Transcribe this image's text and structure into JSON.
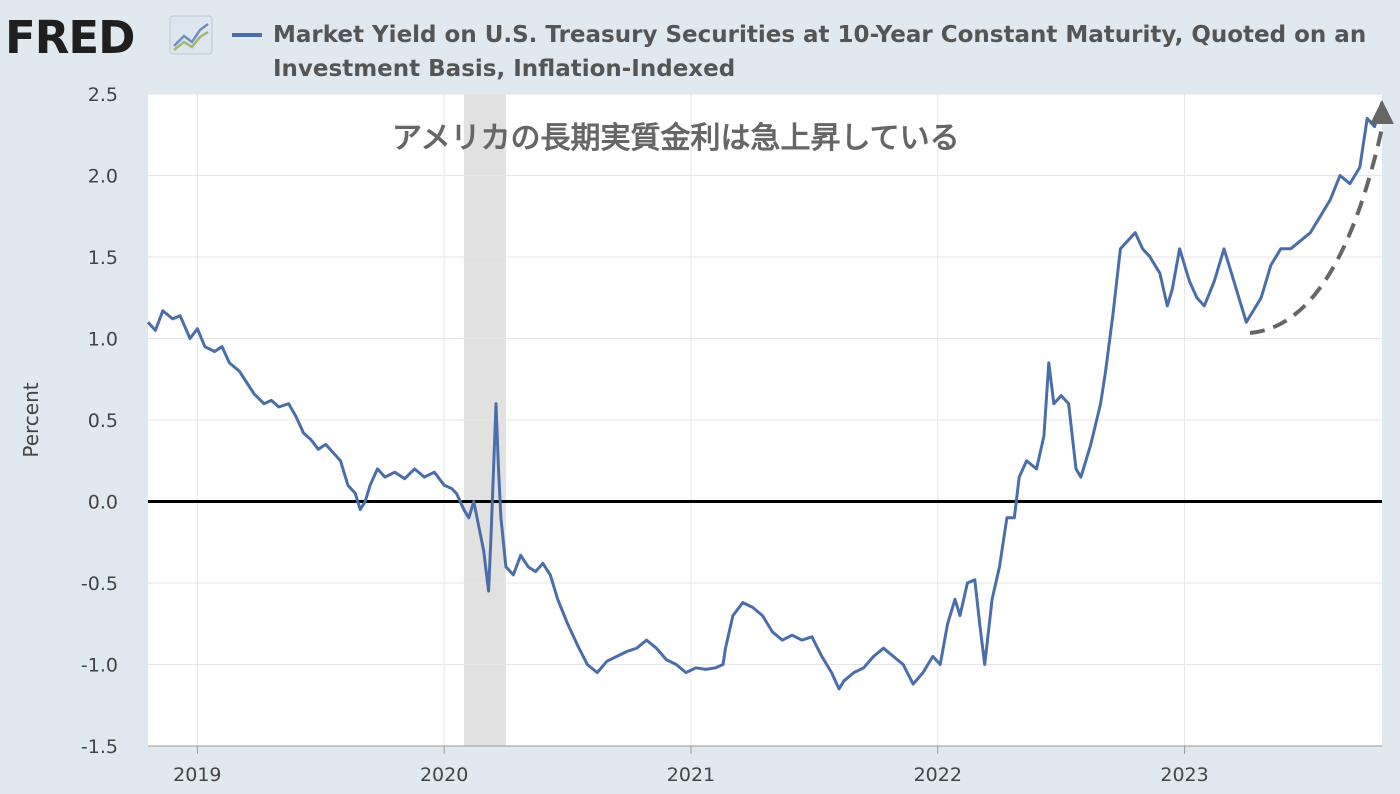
{
  "header": {
    "logo_text": "FRED",
    "logo_icon": "fred-chart-icon",
    "legend_color": "#4a6ea9",
    "title_line1": "Market Yield on U.S. Treasury Securities at 10-Year Constant Maturity, Quoted on an",
    "title_line2": "Investment Basis, Inflation-Indexed"
  },
  "annotation": "アメリカの長期実質金利は急上昇している",
  "colors": {
    "page_bg": "#e1e9f0",
    "plot_bg": "#ffffff",
    "series": "#4a6ea9",
    "recession": "#e1e1e1",
    "zero_line": "#000000",
    "arrow": "#666666"
  },
  "chart_data": {
    "type": "line",
    "title": "Market Yield on U.S. Treasury Securities at 10-Year Constant Maturity, Quoted on an Investment Basis, Inflation-Indexed",
    "xlabel": "",
    "ylabel": "Percent",
    "ylim": [
      -1.5,
      2.5
    ],
    "xlim": [
      2018.8,
      2023.8
    ],
    "yticks": [
      "2.5",
      "2.0",
      "1.5",
      "1.0",
      "0.5",
      "0.0",
      "-0.5",
      "-1.0",
      "-1.5"
    ],
    "xticks": [
      "2019",
      "2020",
      "2021",
      "2022",
      "2023"
    ],
    "grid": true,
    "recession": [
      2020.08,
      2020.25
    ],
    "reference_line": 0,
    "series": [
      {
        "values": [
          [
            2018.8,
            1.1
          ],
          [
            2018.83,
            1.05
          ],
          [
            2018.86,
            1.17
          ],
          [
            2018.9,
            1.12
          ],
          [
            2018.93,
            1.14
          ],
          [
            2018.97,
            1.0
          ],
          [
            2019.0,
            1.06
          ],
          [
            2019.03,
            0.95
          ],
          [
            2019.07,
            0.92
          ],
          [
            2019.1,
            0.95
          ],
          [
            2019.13,
            0.85
          ],
          [
            2019.17,
            0.8
          ],
          [
            2019.2,
            0.73
          ],
          [
            2019.23,
            0.66
          ],
          [
            2019.27,
            0.6
          ],
          [
            2019.3,
            0.62
          ],
          [
            2019.33,
            0.58
          ],
          [
            2019.37,
            0.6
          ],
          [
            2019.4,
            0.52
          ],
          [
            2019.43,
            0.42
          ],
          [
            2019.46,
            0.38
          ],
          [
            2019.49,
            0.32
          ],
          [
            2019.52,
            0.35
          ],
          [
            2019.55,
            0.3
          ],
          [
            2019.58,
            0.25
          ],
          [
            2019.61,
            0.1
          ],
          [
            2019.64,
            0.05
          ],
          [
            2019.66,
            -0.05
          ],
          [
            2019.68,
            0.0
          ],
          [
            2019.7,
            0.1
          ],
          [
            2019.73,
            0.2
          ],
          [
            2019.76,
            0.15
          ],
          [
            2019.8,
            0.18
          ],
          [
            2019.84,
            0.14
          ],
          [
            2019.88,
            0.2
          ],
          [
            2019.92,
            0.15
          ],
          [
            2019.96,
            0.18
          ],
          [
            2020.0,
            0.1
          ],
          [
            2020.03,
            0.08
          ],
          [
            2020.05,
            0.05
          ],
          [
            2020.08,
            -0.05
          ],
          [
            2020.1,
            -0.1
          ],
          [
            2020.12,
            0.0
          ],
          [
            2020.14,
            -0.15
          ],
          [
            2020.16,
            -0.3
          ],
          [
            2020.18,
            -0.55
          ],
          [
            2020.19,
            -0.2
          ],
          [
            2020.21,
            0.6
          ],
          [
            2020.22,
            0.2
          ],
          [
            2020.23,
            -0.1
          ],
          [
            2020.25,
            -0.4
          ],
          [
            2020.28,
            -0.45
          ],
          [
            2020.31,
            -0.33
          ],
          [
            2020.34,
            -0.4
          ],
          [
            2020.37,
            -0.43
          ],
          [
            2020.4,
            -0.38
          ],
          [
            2020.43,
            -0.45
          ],
          [
            2020.46,
            -0.6
          ],
          [
            2020.5,
            -0.75
          ],
          [
            2020.54,
            -0.88
          ],
          [
            2020.58,
            -1.0
          ],
          [
            2020.62,
            -1.05
          ],
          [
            2020.66,
            -0.98
          ],
          [
            2020.7,
            -0.95
          ],
          [
            2020.74,
            -0.92
          ],
          [
            2020.78,
            -0.9
          ],
          [
            2020.82,
            -0.85
          ],
          [
            2020.86,
            -0.9
          ],
          [
            2020.9,
            -0.97
          ],
          [
            2020.94,
            -1.0
          ],
          [
            2020.98,
            -1.05
          ],
          [
            2021.02,
            -1.02
          ],
          [
            2021.06,
            -1.03
          ],
          [
            2021.1,
            -1.02
          ],
          [
            2021.13,
            -1.0
          ],
          [
            2021.14,
            -0.9
          ],
          [
            2021.17,
            -0.7
          ],
          [
            2021.21,
            -0.62
          ],
          [
            2021.25,
            -0.65
          ],
          [
            2021.29,
            -0.7
          ],
          [
            2021.33,
            -0.8
          ],
          [
            2021.37,
            -0.85
          ],
          [
            2021.41,
            -0.82
          ],
          [
            2021.45,
            -0.85
          ],
          [
            2021.49,
            -0.83
          ],
          [
            2021.53,
            -0.95
          ],
          [
            2021.57,
            -1.05
          ],
          [
            2021.6,
            -1.15
          ],
          [
            2021.62,
            -1.1
          ],
          [
            2021.66,
            -1.05
          ],
          [
            2021.7,
            -1.02
          ],
          [
            2021.74,
            -0.95
          ],
          [
            2021.78,
            -0.9
          ],
          [
            2021.82,
            -0.95
          ],
          [
            2021.86,
            -1.0
          ],
          [
            2021.9,
            -1.12
          ],
          [
            2021.94,
            -1.05
          ],
          [
            2021.98,
            -0.95
          ],
          [
            2022.01,
            -1.0
          ],
          [
            2022.04,
            -0.75
          ],
          [
            2022.07,
            -0.6
          ],
          [
            2022.09,
            -0.7
          ],
          [
            2022.12,
            -0.5
          ],
          [
            2022.15,
            -0.48
          ],
          [
            2022.17,
            -0.75
          ],
          [
            2022.19,
            -1.0
          ],
          [
            2022.22,
            -0.6
          ],
          [
            2022.25,
            -0.4
          ],
          [
            2022.28,
            -0.1
          ],
          [
            2022.31,
            -0.1
          ],
          [
            2022.33,
            0.15
          ],
          [
            2022.36,
            0.25
          ],
          [
            2022.4,
            0.2
          ],
          [
            2022.43,
            0.4
          ],
          [
            2022.45,
            0.85
          ],
          [
            2022.47,
            0.6
          ],
          [
            2022.5,
            0.65
          ],
          [
            2022.53,
            0.6
          ],
          [
            2022.56,
            0.2
          ],
          [
            2022.58,
            0.15
          ],
          [
            2022.62,
            0.35
          ],
          [
            2022.66,
            0.6
          ],
          [
            2022.68,
            0.8
          ],
          [
            2022.71,
            1.15
          ],
          [
            2022.74,
            1.55
          ],
          [
            2022.77,
            1.6
          ],
          [
            2022.8,
            1.65
          ],
          [
            2022.83,
            1.55
          ],
          [
            2022.86,
            1.5
          ],
          [
            2022.9,
            1.4
          ],
          [
            2022.93,
            1.2
          ],
          [
            2022.95,
            1.3
          ],
          [
            2022.98,
            1.55
          ],
          [
            2023.02,
            1.35
          ],
          [
            2023.05,
            1.25
          ],
          [
            2023.08,
            1.2
          ],
          [
            2023.12,
            1.35
          ],
          [
            2023.16,
            1.55
          ],
          [
            2023.19,
            1.4
          ],
          [
            2023.22,
            1.25
          ],
          [
            2023.25,
            1.1
          ],
          [
            2023.27,
            1.15
          ],
          [
            2023.31,
            1.25
          ],
          [
            2023.35,
            1.45
          ],
          [
            2023.39,
            1.55
          ],
          [
            2023.43,
            1.55
          ],
          [
            2023.47,
            1.6
          ],
          [
            2023.51,
            1.65
          ],
          [
            2023.55,
            1.75
          ],
          [
            2023.59,
            1.85
          ],
          [
            2023.63,
            2.0
          ],
          [
            2023.67,
            1.95
          ],
          [
            2023.71,
            2.05
          ],
          [
            2023.74,
            2.35
          ],
          [
            2023.77,
            2.3
          ],
          [
            2023.8,
            2.45
          ]
        ]
      }
    ]
  }
}
